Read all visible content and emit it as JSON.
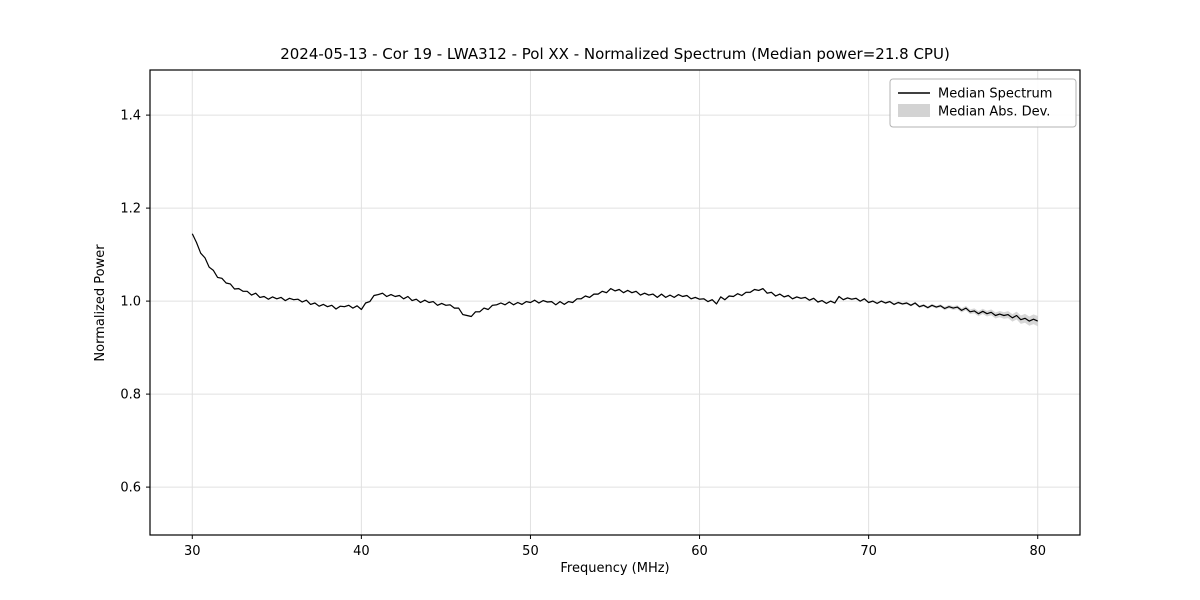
{
  "chart_data": {
    "type": "line",
    "title": "2024-05-13 - Cor 19 - LWA312 - Pol XX - Normalized Spectrum (Median power=21.8 CPU)",
    "xlabel": "Frequency (MHz)",
    "ylabel": "Normalized Power",
    "xlim": [
      27.5,
      82.5
    ],
    "ylim": [
      0.497,
      1.497
    ],
    "xticks": [
      30,
      40,
      50,
      60,
      70,
      80
    ],
    "xtick_labels": [
      "30",
      "40",
      "50",
      "60",
      "70",
      "80"
    ],
    "yticks": [
      0.6,
      0.8,
      1.0,
      1.2,
      1.4
    ],
    "ytick_labels": [
      "0.6",
      "0.8",
      "1.0",
      "1.2",
      "1.4"
    ],
    "grid": true,
    "legend": {
      "position": "upper right",
      "entries": [
        {
          "label": "Median Spectrum",
          "type": "line",
          "color": "#000000"
        },
        {
          "label": "Median Abs. Dev.",
          "type": "patch",
          "color": "#d3d3d3"
        }
      ]
    },
    "colors": {
      "line": "#000000",
      "band": "#bdbdbd",
      "grid": "#e0e0e0"
    },
    "x": {
      "start": 30.0,
      "step": 0.25,
      "count": 201
    },
    "series": [
      {
        "name": "Median Spectrum",
        "values": [
          1.145,
          1.126,
          1.103,
          1.093,
          1.073,
          1.066,
          1.051,
          1.049,
          1.039,
          1.037,
          1.026,
          1.027,
          1.021,
          1.021,
          1.013,
          1.017,
          1.008,
          1.01,
          1.004,
          1.009,
          1.005,
          1.008,
          1.001,
          1.006,
          1.003,
          1.004,
          0.998,
          1.002,
          0.993,
          0.996,
          0.989,
          0.993,
          0.988,
          0.991,
          0.983,
          0.989,
          0.988,
          0.991,
          0.985,
          0.99,
          0.982,
          0.996,
          0.999,
          1.012,
          1.014,
          1.017,
          1.01,
          1.014,
          1.01,
          1.012,
          1.005,
          1.01,
          1.001,
          1.004,
          0.997,
          1.002,
          0.997,
          0.999,
          0.991,
          0.995,
          0.991,
          0.992,
          0.985,
          0.985,
          0.971,
          0.969,
          0.967,
          0.977,
          0.977,
          0.985,
          0.982,
          0.991,
          0.992,
          0.996,
          0.992,
          0.998,
          0.992,
          0.997,
          0.993,
          0.999,
          0.997,
          1.002,
          0.996,
          1.001,
          0.998,
          0.999,
          0.992,
          0.999,
          0.993,
          0.999,
          0.997,
          1.005,
          1.005,
          1.011,
          1.008,
          1.015,
          1.015,
          1.021,
          1.018,
          1.027,
          1.022,
          1.025,
          1.018,
          1.023,
          1.018,
          1.021,
          1.013,
          1.017,
          1.013,
          1.015,
          1.008,
          1.015,
          1.008,
          1.013,
          1.008,
          1.014,
          1.01,
          1.012,
          1.005,
          1.008,
          1.004,
          1.005,
          0.999,
          1.003,
          0.994,
          1.009,
          1.003,
          1.011,
          1.01,
          1.016,
          1.012,
          1.019,
          1.019,
          1.025,
          1.023,
          1.027,
          1.017,
          1.019,
          1.011,
          1.015,
          1.009,
          1.012,
          1.005,
          1.009,
          1.006,
          1.008,
          1.002,
          1.006,
          0.998,
          1.001,
          0.995,
          1.0,
          0.996,
          1.01,
          1.003,
          1.007,
          1.004,
          1.006,
          1.0,
          1.005,
          0.997,
          1.0,
          0.995,
          1.0,
          0.996,
          0.999,
          0.993,
          0.997,
          0.994,
          0.996,
          0.991,
          0.996,
          0.988,
          0.991,
          0.986,
          0.991,
          0.987,
          0.99,
          0.984,
          0.988,
          0.985,
          0.987,
          0.98,
          0.985,
          0.977,
          0.979,
          0.973,
          0.978,
          0.973,
          0.976,
          0.969,
          0.972,
          0.969,
          0.971,
          0.964,
          0.969,
          0.96,
          0.963,
          0.957,
          0.961,
          0.957
        ]
      }
    ],
    "mad_band": {
      "name": "Median Abs. Dev.",
      "x": [
        30,
        70,
        72,
        74,
        75,
        76,
        77,
        78,
        79,
        80
      ],
      "halfwidth": [
        0.0015,
        0.002,
        0.0025,
        0.003,
        0.004,
        0.005,
        0.006,
        0.007,
        0.009,
        0.011
      ]
    }
  }
}
